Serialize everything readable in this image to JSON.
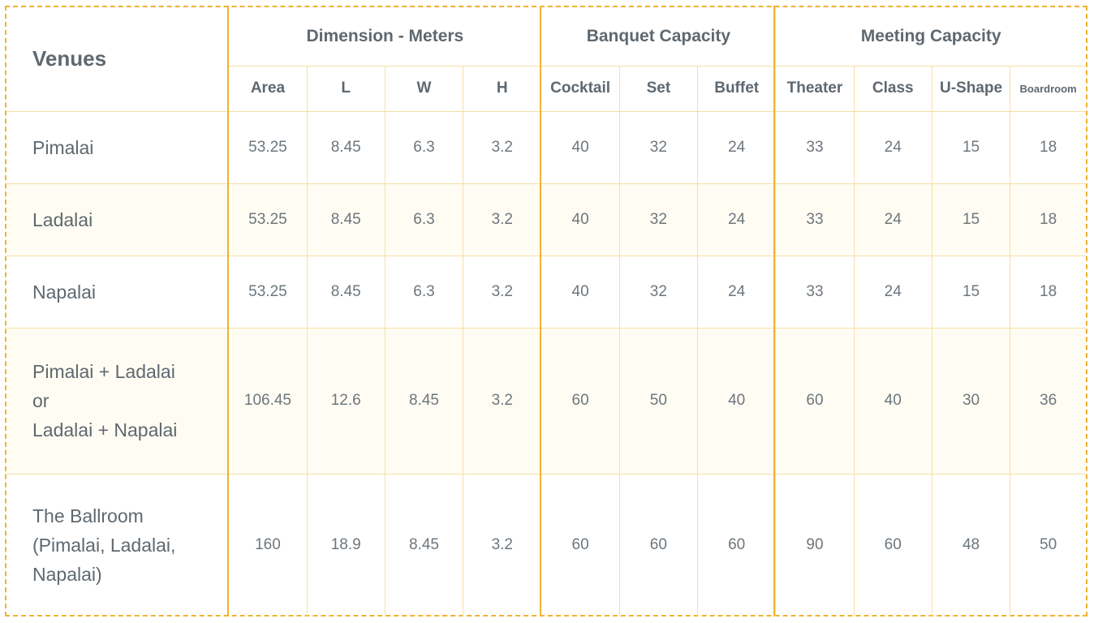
{
  "title": "Venues",
  "groups": {
    "dimension": "Dimension - Meters",
    "banquet": "Banquet Capacity",
    "meeting": "Meeting Capacity"
  },
  "columns": [
    "Area",
    "L",
    "W",
    "H",
    "Cocktail",
    "Set",
    "Buffet",
    "Theater",
    "Class",
    "U-Shape",
    "Boardroom"
  ],
  "rows": [
    {
      "venue": "Pimalai",
      "values": [
        "53.25",
        "8.45",
        "6.3",
        "3.2",
        "40",
        "32",
        "24",
        "33",
        "24",
        "15",
        "18"
      ]
    },
    {
      "venue": "Ladalai",
      "values": [
        "53.25",
        "8.45",
        "6.3",
        "3.2",
        "40",
        "32",
        "24",
        "33",
        "24",
        "15",
        "18"
      ]
    },
    {
      "venue": "Napalai",
      "values": [
        "53.25",
        "8.45",
        "6.3",
        "3.2",
        "40",
        "32",
        "24",
        "33",
        "24",
        "15",
        "18"
      ]
    },
    {
      "venue": "Pimalai + Ladalai\nor\nLadalai + Napalai",
      "values": [
        "106.45",
        "12.6",
        "8.45",
        "3.2",
        "60",
        "50",
        "40",
        "60",
        "40",
        "30",
        "36"
      ]
    },
    {
      "venue": "The Ballroom\n(Pimalai, Ladalai,\nNapalai)",
      "values": [
        "160",
        "18.9",
        "8.45",
        "3.2",
        "60",
        "60",
        "60",
        "90",
        "60",
        "48",
        "50"
      ]
    }
  ],
  "colors": {
    "border_accent": "#f2b233",
    "grid_line": "#f7dfa5",
    "alt_row": "#fffcf3",
    "text": "#5f686f"
  }
}
